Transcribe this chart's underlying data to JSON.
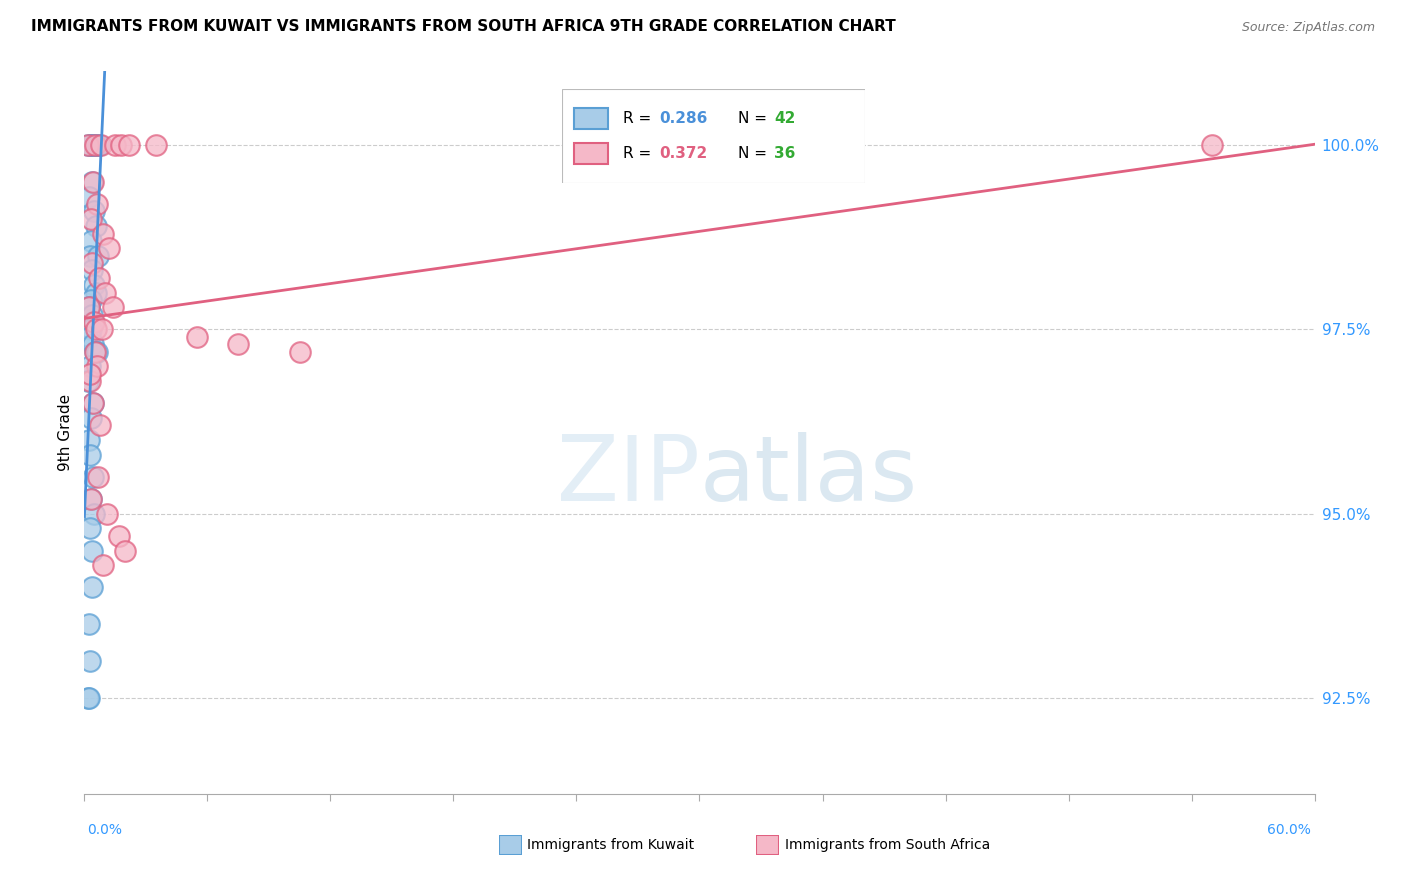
{
  "title": "IMMIGRANTS FROM KUWAIT VS IMMIGRANTS FROM SOUTH AFRICA 9TH GRADE CORRELATION CHART",
  "source": "Source: ZipAtlas.com",
  "ylabel": "9th Grade",
  "yticks": [
    92.5,
    95.0,
    97.5,
    100.0
  ],
  "ytick_labels": [
    "92.5%",
    "95.0%",
    "97.5%",
    "100.0%"
  ],
  "xmin": 0.0,
  "xmax": 60.0,
  "ymin": 91.2,
  "ymax": 101.0,
  "R_kuwait": 0.286,
  "N_kuwait": 42,
  "R_sa": 0.372,
  "N_sa": 36,
  "color_kuwait_fill": "#a8cce8",
  "color_kuwait_edge": "#5a9fd4",
  "color_sa_fill": "#f5b8c8",
  "color_sa_edge": "#e06080",
  "color_kuwait_line": "#4a90d9",
  "color_sa_line": "#e06080",
  "legend_R_kuwait_color": "#4a90d9",
  "legend_R_sa_color": "#e06080",
  "legend_N_color": "#33aa33",
  "kuwait_x": [
    0.3,
    0.5,
    0.4,
    0.3,
    0.2,
    0.6,
    0.7,
    0.35,
    0.25,
    0.45,
    0.55,
    0.32,
    0.28,
    0.65,
    0.38,
    0.48,
    0.58,
    0.3,
    0.22,
    0.36,
    0.42,
    0.31,
    0.27,
    0.4,
    0.52,
    0.62,
    0.29,
    0.18,
    0.44,
    0.34,
    0.23,
    0.28,
    0.41,
    0.32,
    0.47,
    0.26,
    0.35,
    0.39,
    0.22,
    0.28,
    0.18,
    0.24
  ],
  "kuwait_y": [
    100.0,
    100.0,
    100.0,
    100.0,
    100.0,
    100.0,
    100.0,
    99.5,
    99.3,
    99.1,
    98.9,
    98.7,
    98.5,
    98.5,
    98.3,
    98.1,
    98.0,
    97.9,
    97.8,
    97.7,
    97.6,
    97.5,
    97.4,
    97.3,
    97.2,
    97.2,
    97.0,
    96.8,
    96.5,
    96.3,
    96.0,
    95.8,
    95.5,
    95.2,
    95.0,
    94.8,
    94.5,
    94.0,
    93.5,
    93.0,
    92.5,
    92.5
  ],
  "sa_x": [
    0.2,
    0.5,
    0.8,
    1.5,
    1.8,
    2.2,
    3.5,
    0.4,
    0.6,
    0.3,
    0.9,
    1.2,
    0.35,
    0.7,
    1.0,
    0.25,
    1.4,
    0.45,
    0.55,
    0.85,
    5.5,
    7.5,
    10.5,
    55.0,
    0.28,
    0.42,
    0.75,
    0.65,
    0.32,
    1.1,
    1.7,
    2.0,
    0.5,
    0.6,
    0.28,
    0.9
  ],
  "sa_y": [
    100.0,
    100.0,
    100.0,
    100.0,
    100.0,
    100.0,
    100.0,
    99.5,
    99.2,
    99.0,
    98.8,
    98.6,
    98.4,
    98.2,
    98.0,
    97.8,
    97.8,
    97.6,
    97.5,
    97.5,
    97.4,
    97.3,
    97.2,
    100.0,
    96.8,
    96.5,
    96.2,
    95.5,
    95.2,
    95.0,
    94.7,
    94.5,
    97.2,
    97.0,
    96.9,
    94.3
  ]
}
